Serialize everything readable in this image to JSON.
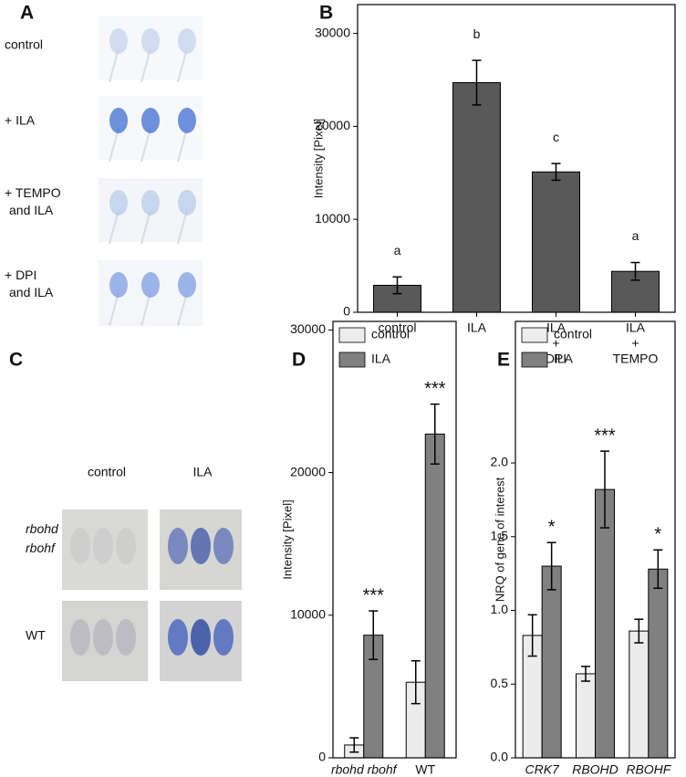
{
  "image_panels": [
    {
      "panel_label": "A",
      "rows": [
        [
          "control"
        ],
        [
          "+ ILA"
        ],
        [
          "+ TEMPO",
          "and ILA"
        ],
        [
          "+ DPI",
          "and ILA"
        ]
      ]
    },
    {
      "panel_label": "C",
      "columns": [
        "control",
        "ILA"
      ],
      "rows": [
        [
          "rbohd",
          "rbohf"
        ],
        [
          "WT"
        ]
      ]
    }
  ],
  "chart_data": [
    {
      "type": "bar",
      "panel_label": "B",
      "y_label": "Intensity [Pixel]",
      "categories": [
        [
          "control"
        ],
        [
          "ILA"
        ],
        [
          "ILA",
          "+",
          "DPI"
        ],
        [
          "ILA",
          "+",
          "TEMPO"
        ]
      ],
      "values": [
        2900,
        24700,
        15100,
        4400
      ],
      "errors": [
        900,
        2400,
        900,
        950
      ],
      "annotations": [
        "a",
        "b",
        "c",
        "a"
      ],
      "color": "#595959",
      "ylim": [
        0,
        33100
      ],
      "yticks": [
        0,
        10000,
        20000,
        30000
      ]
    },
    {
      "type": "grouped-bar",
      "panel_label": "D",
      "y_label": "Intensity [Pixel]",
      "categories": [
        "rbohd rbohf",
        "WT"
      ],
      "category_italic": [
        true,
        false
      ],
      "series": [
        {
          "name": "control",
          "color": "#ececec",
          "values": [
            900,
            5300
          ],
          "errors": [
            500,
            1500
          ]
        },
        {
          "name": "ILA",
          "color": "#808080",
          "values": [
            8600,
            22700
          ],
          "errors": [
            1700,
            2100
          ]
        }
      ],
      "annotations": [
        "***",
        "***"
      ],
      "ylim": [
        0,
        30600
      ],
      "yticks": [
        0,
        10000,
        20000,
        30000
      ]
    },
    {
      "type": "grouped-bar",
      "panel_label": "E",
      "y_label": "NRQ of gene of interest",
      "categories": [
        "CRK7",
        "RBOHD",
        "RBOHF"
      ],
      "category_italic": [
        true,
        true,
        true
      ],
      "series": [
        {
          "name": "control",
          "color": "#ececec",
          "values": [
            0.83,
            0.57,
            0.86
          ],
          "errors": [
            0.14,
            0.05,
            0.08
          ]
        },
        {
          "name": "ILA",
          "color": "#808080",
          "values": [
            1.3,
            1.82,
            1.28
          ],
          "errors": [
            0.16,
            0.26,
            0.13
          ]
        }
      ],
      "annotations": [
        "*",
        "***",
        "*"
      ],
      "ylim": [
        0,
        2.96
      ],
      "yticks": [
        {
          "value": 0,
          "label": "0.0"
        },
        {
          "value": 0.5,
          "label": "0.5"
        },
        {
          "value": 1,
          "label": "1.0"
        },
        {
          "value": 1.5,
          "label": "1.5"
        },
        {
          "value": 2,
          "label": "2.0"
        }
      ]
    }
  ]
}
